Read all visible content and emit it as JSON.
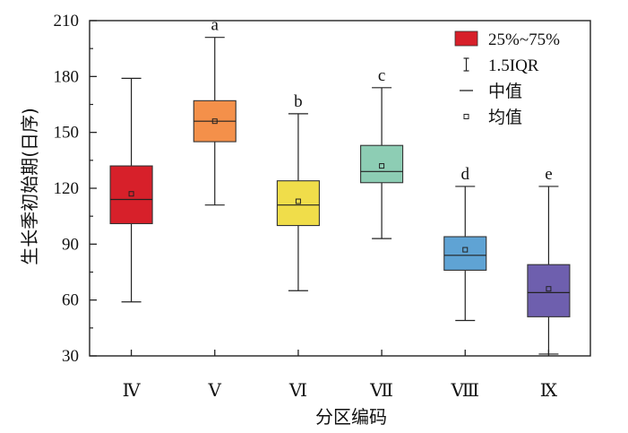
{
  "chart_data": {
    "type": "box",
    "xlabel": "分区编码",
    "ylabel": "生长季初始期(日序)",
    "ylim": [
      30,
      210
    ],
    "yticks": [
      30,
      60,
      90,
      120,
      150,
      180,
      210
    ],
    "categories": [
      "Ⅳ",
      "Ⅴ",
      "Ⅵ",
      "Ⅶ",
      "Ⅷ",
      "Ⅸ"
    ],
    "boxes": [
      {
        "category": "Ⅳ",
        "whisker_low": 59,
        "q1": 101,
        "median": 114,
        "q3": 132,
        "whisker_high": 179,
        "mean": 117,
        "color": "#d7202a",
        "sig": ""
      },
      {
        "category": "Ⅴ",
        "whisker_low": 111,
        "q1": 145,
        "median": 156,
        "q3": 167,
        "whisker_high": 201,
        "mean": 156,
        "color": "#f4904a",
        "sig": "a"
      },
      {
        "category": "Ⅵ",
        "whisker_low": 65,
        "q1": 100,
        "median": 111,
        "q3": 124,
        "whisker_high": 160,
        "mean": 113,
        "color": "#f0dd4a",
        "sig": "b"
      },
      {
        "category": "Ⅶ",
        "whisker_low": 93,
        "q1": 123,
        "median": 129,
        "q3": 143,
        "whisker_high": 174,
        "mean": 132,
        "color": "#8dcdb4",
        "sig": "c"
      },
      {
        "category": "Ⅷ",
        "whisker_low": 49,
        "q1": 76,
        "median": 84,
        "q3": 94,
        "whisker_high": 121,
        "mean": 87,
        "color": "#5fa3d4",
        "sig": "d"
      },
      {
        "category": "Ⅸ",
        "whisker_low": 31,
        "q1": 51,
        "median": 64,
        "q3": 79,
        "whisker_high": 121,
        "mean": 66,
        "color": "#6e5fae",
        "sig": "e"
      }
    ],
    "legend": {
      "position": "top-right",
      "items": [
        {
          "label": "25%~75%",
          "kind": "box",
          "color": "#d7202a"
        },
        {
          "label": "1.5IQR",
          "kind": "whisker"
        },
        {
          "label": "中值",
          "kind": "median"
        },
        {
          "label": "均值",
          "kind": "mean"
        }
      ]
    }
  }
}
